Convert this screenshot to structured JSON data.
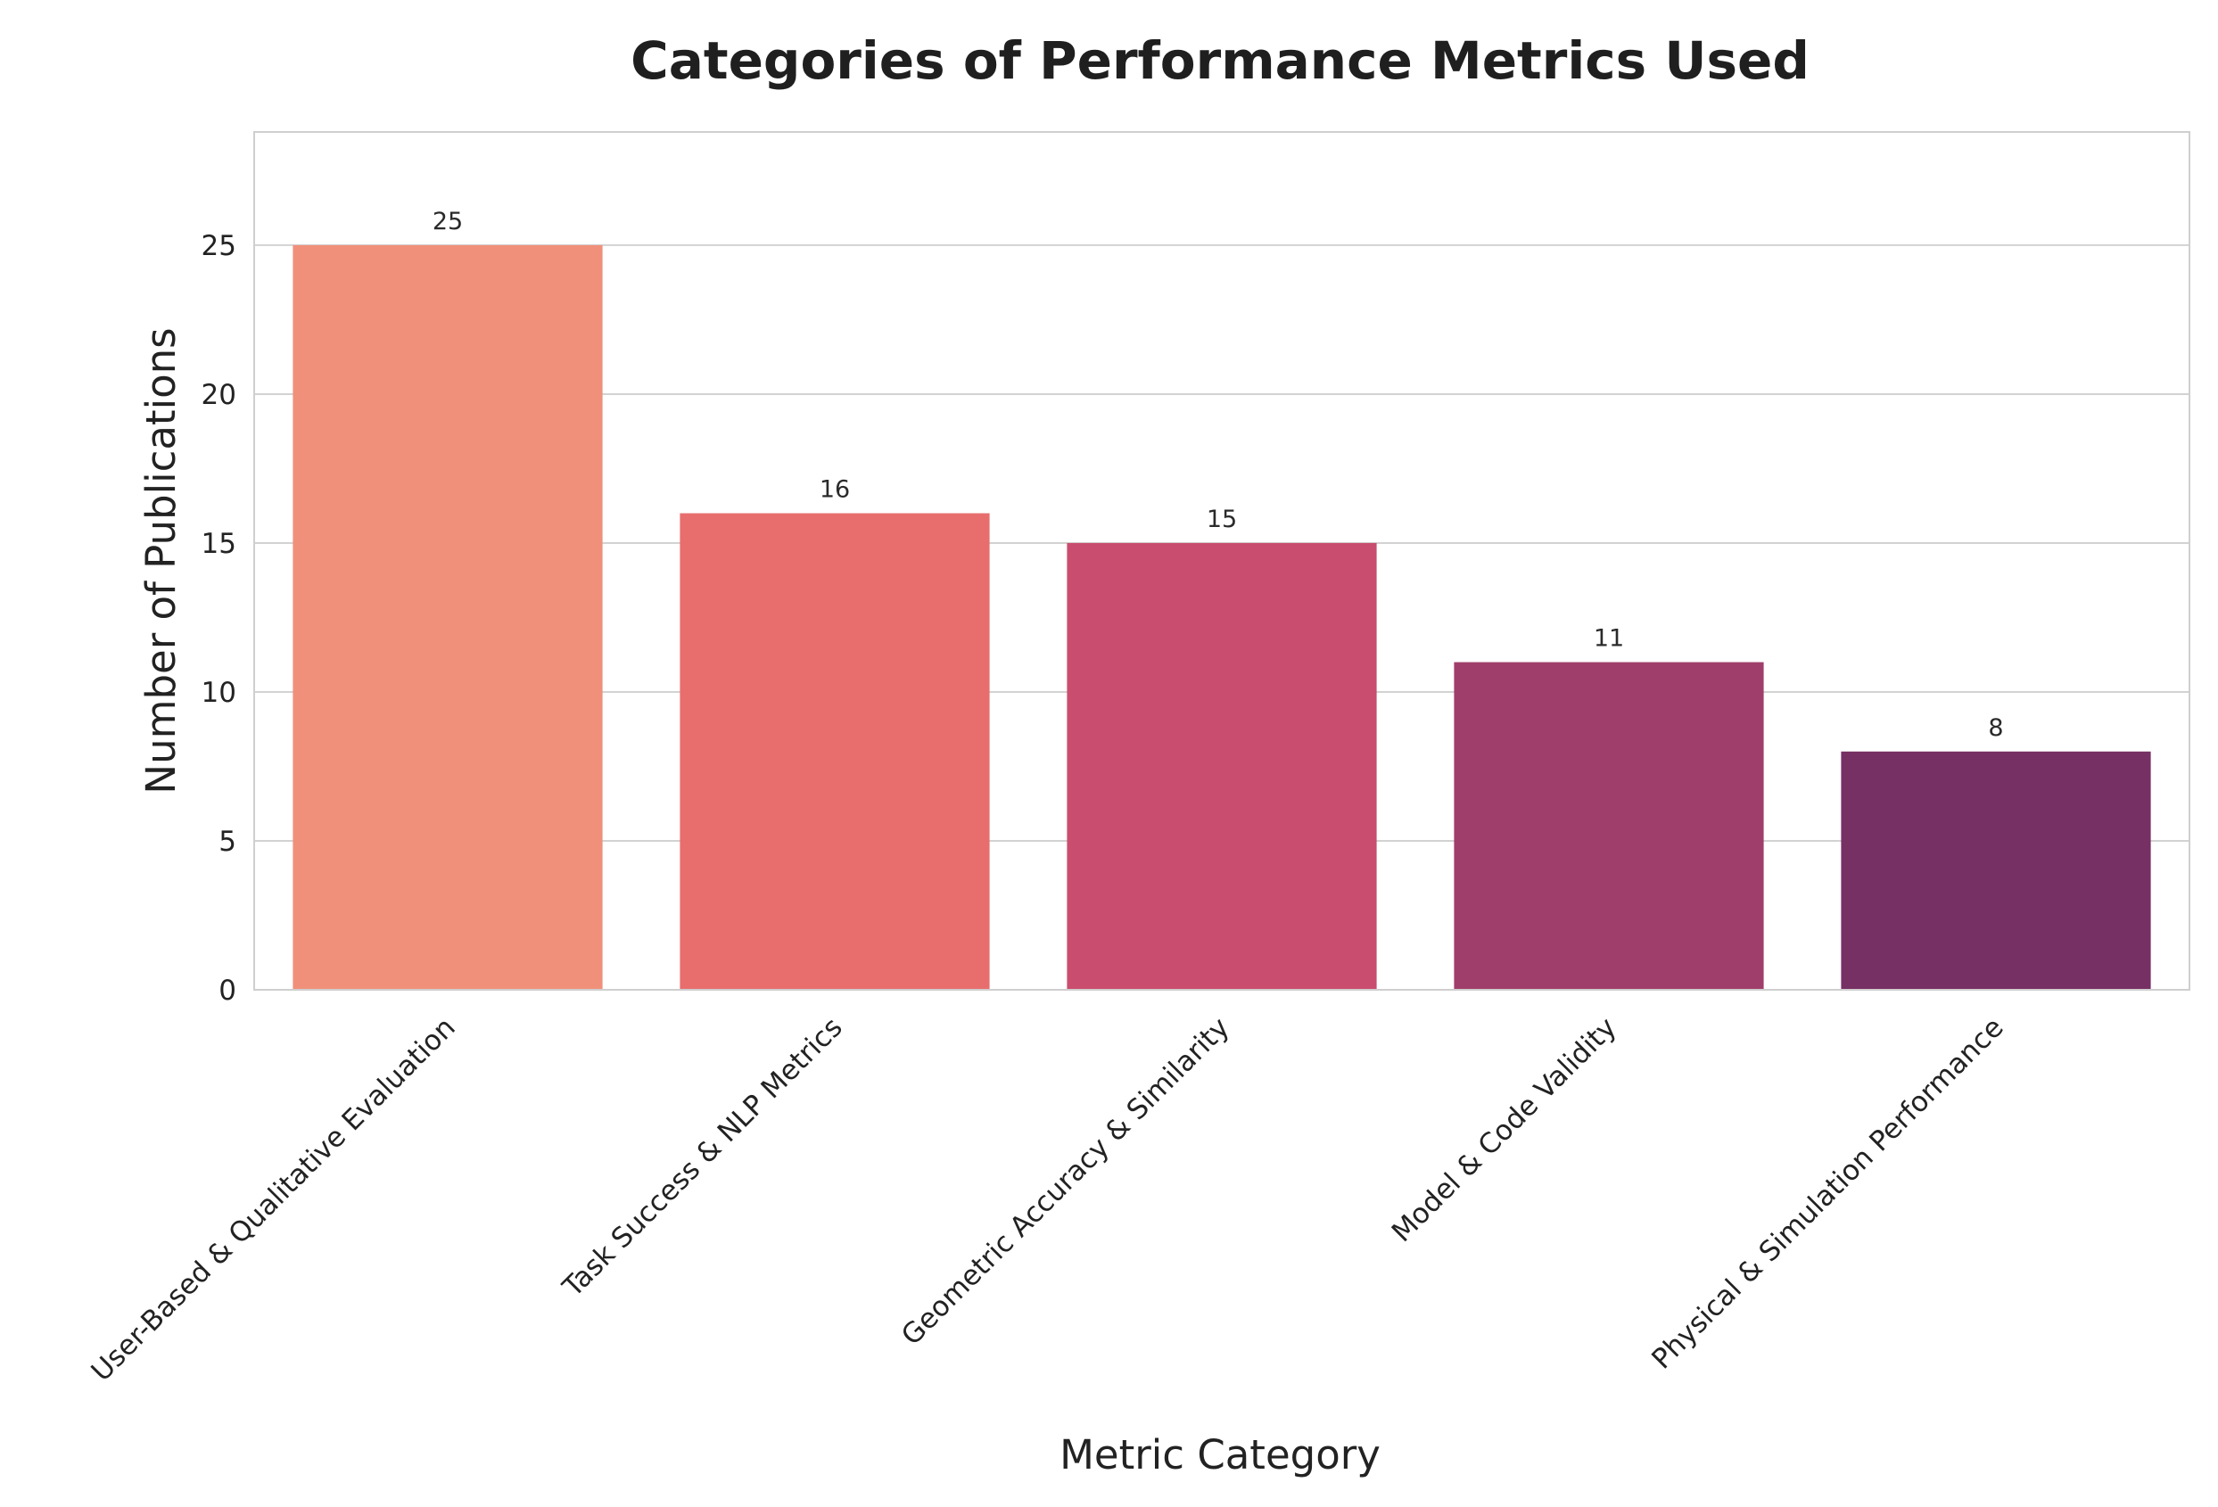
{
  "chart_data": {
    "type": "bar",
    "title": "Categories of Performance Metrics Used",
    "xlabel": "Metric Category",
    "ylabel": "Number of Publications",
    "categories": [
      "User-Based & Qualitative Evaluation",
      "Task Success & NLP Metrics",
      "Geometric Accuracy & Similarity",
      "Model & Code Validity",
      "Physical & Simulation Performance"
    ],
    "values": [
      25,
      16,
      15,
      11,
      8
    ],
    "colors": [
      "#f0907a",
      "#e86e6e",
      "#c94d6e",
      "#a03e6b",
      "#763064"
    ],
    "ylim": [
      0,
      28.8
    ],
    "yticks": [
      0,
      5,
      10,
      15,
      20,
      25
    ],
    "grid": true,
    "legend": "none"
  }
}
